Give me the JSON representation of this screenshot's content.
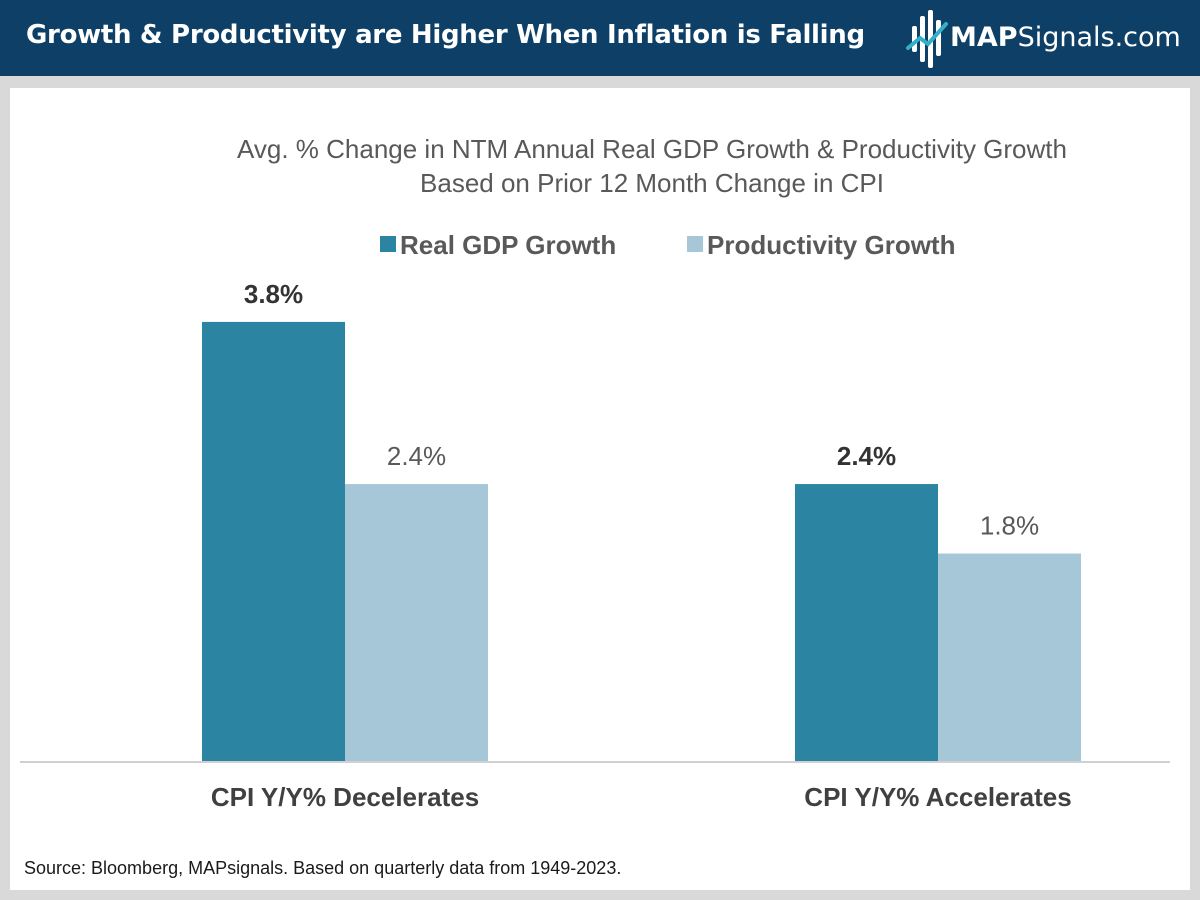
{
  "header": {
    "title": "Growth & Productivity are Higher When Inflation is Falling",
    "logo_strong": "MAP",
    "logo_rest": "Signals.com"
  },
  "colors": {
    "header_bg": "#0e3f66",
    "gdp": "#2b84a1",
    "productivity": "#a5c7d7"
  },
  "chart_data": {
    "type": "bar",
    "title_line1": "Avg. % Change in NTM Annual Real GDP Growth & Productivity Growth",
    "title_line2": "Based on Prior 12 Month Change in CPI",
    "categories": [
      "CPI Y/Y% Decelerates",
      "CPI Y/Y% Accelerates"
    ],
    "series": [
      {
        "name": "Real GDP Growth",
        "values": [
          3.8,
          2.4
        ],
        "labels": [
          "3.8%",
          "2.4%"
        ],
        "color": "#2b84a1",
        "bold_labels": true
      },
      {
        "name": "Productivity Growth",
        "values": [
          2.4,
          1.8
        ],
        "labels": [
          "2.4%",
          "1.8%"
        ],
        "color": "#a5c7d7",
        "bold_labels": false
      }
    ],
    "ylim": [
      0,
      4.3
    ],
    "legend": "top-center",
    "grid": false
  },
  "footer": {
    "source": "Source: Bloomberg, MAPsignals. Based on quarterly data from 1949-2023."
  }
}
